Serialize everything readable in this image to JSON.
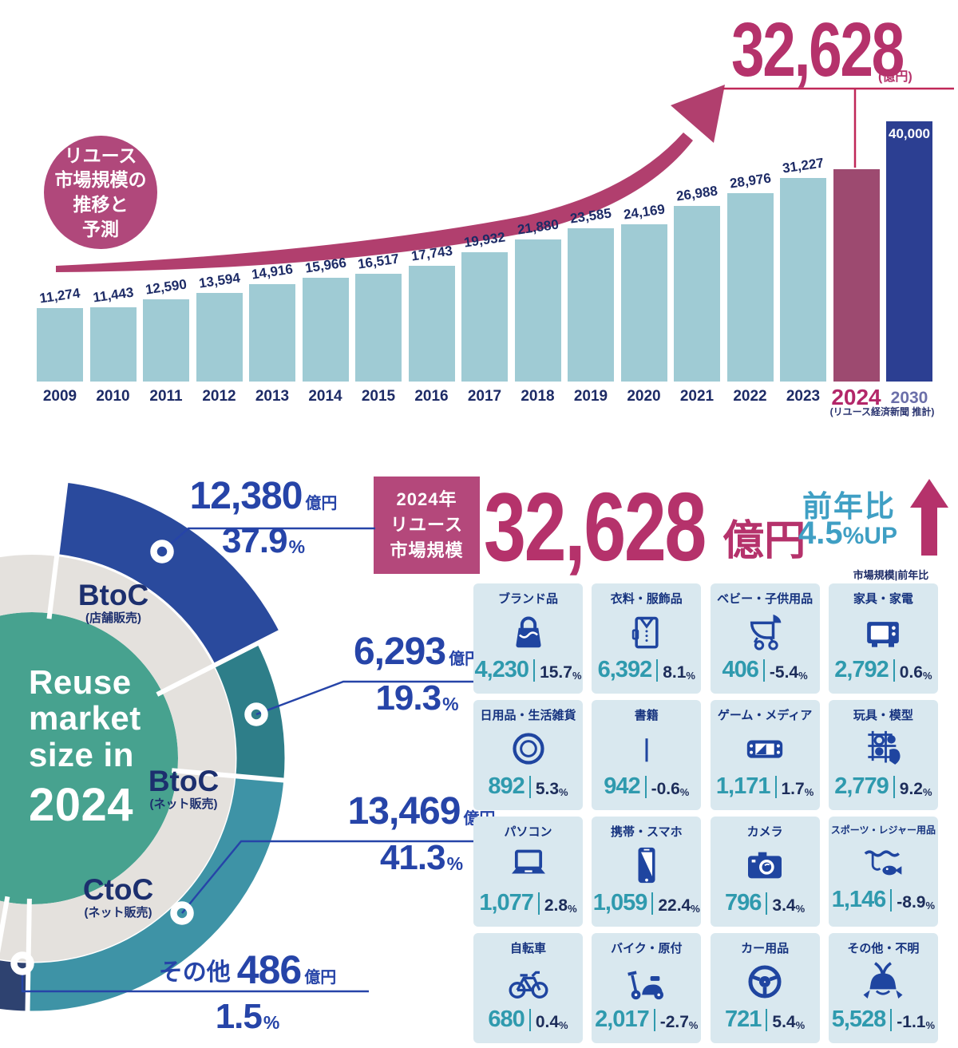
{
  "colors": {
    "accent_magenta": "#b5326b",
    "badge_pink": "#b0487b",
    "crimson_line": "#c02858",
    "navy_text": "#1d2b66",
    "callout_blue": "#2644a8",
    "ring_label_navy": "#1c2f6e",
    "teal_value": "#2f9aae",
    "card_bg": "#d9e8ef",
    "icon_blue": "#1f45a0",
    "yoy_teal": "#3f9fc4",
    "donut_center_teal": "#47a28f",
    "donut_gray_ring": "#e4e1dd"
  },
  "chart_data": [
    {
      "type": "bar",
      "title_badge_lines": [
        "リユース",
        "市場規模の",
        "推移と",
        "予測"
      ],
      "categories": [
        "2009",
        "2010",
        "2011",
        "2012",
        "2013",
        "2014",
        "2015",
        "2016",
        "2017",
        "2018",
        "2019",
        "2020",
        "2021",
        "2022",
        "2023",
        "2024",
        "2030"
      ],
      "values": [
        11274,
        11443,
        12590,
        13594,
        14916,
        15966,
        16517,
        17743,
        19932,
        21880,
        23585,
        24169,
        26988,
        28976,
        31227,
        32628,
        40000
      ],
      "value_labels": [
        "11,274",
        "11,443",
        "12,590",
        "13,594",
        "14,916",
        "15,966",
        "16,517",
        "17,743",
        "19,932",
        "21,880",
        "23,585",
        "24,169",
        "26,988",
        "28,976",
        "31,227",
        "",
        "40,000"
      ],
      "highlight": {
        "value_label": "32,628",
        "unit": "(億円)"
      },
      "source_note": "(リユース経済新聞 推計)",
      "ylim": [
        0,
        40000
      ],
      "grid": false,
      "colors": {
        "bar": "#9fcbd4",
        "bar_2024": "#9d4a70",
        "bar_2030": "#2c3f92",
        "label": "#1d2b66",
        "year_2024": "#b32769",
        "year_2030": "#6b6fa9",
        "arrow": "#b13f6e",
        "line": "#c02858",
        "label_2030": "#ffffff"
      }
    },
    {
      "type": "pie",
      "title_lines": [
        "Reuse",
        "market",
        "size in"
      ],
      "title_year": "2024",
      "segments": [
        {
          "label": "BtoC",
          "sublabel": "(店舗販売)",
          "value": 12380,
          "value_label": "12,380",
          "unit": "億円",
          "percent": 37.9,
          "percent_label": "37.9",
          "percent_unit": "%",
          "color": "#2a4a9d"
        },
        {
          "label": "BtoC",
          "sublabel": "(ネット販売)",
          "value": 6293,
          "value_label": "6,293",
          "unit": "億円",
          "percent": 19.3,
          "percent_label": "19.3",
          "percent_unit": "%",
          "color": "#2e7e89"
        },
        {
          "label": "CtoC",
          "sublabel": "(ネット販売)",
          "value": 13469,
          "value_label": "13,469",
          "unit": "億円",
          "percent": 41.3,
          "percent_label": "41.3",
          "percent_unit": "%",
          "color": "#3e93a6"
        },
        {
          "label": "その他",
          "sublabel": "",
          "value": 486,
          "value_label": "486",
          "unit": "億円",
          "percent": 1.5,
          "percent_label": "1.5",
          "percent_unit": "%",
          "color": "#2e4270"
        }
      ]
    },
    {
      "type": "table",
      "legend": "市場規模|前年比",
      "percent_unit": "%",
      "rows": [
        {
          "label": "ブランド品",
          "icon": "handbag-icon",
          "value": 4230,
          "value_label": "4,230",
          "percent": 15.7,
          "percent_label": "15.7"
        },
        {
          "label": "衣料・服飾品",
          "icon": "shirt-icon",
          "value": 6392,
          "value_label": "6,392",
          "percent": 8.1,
          "percent_label": "8.1"
        },
        {
          "label": "ベビー・子供用品",
          "icon": "stroller-icon",
          "value": 406,
          "value_label": "406",
          "percent": -5.4,
          "percent_label": "-5.4"
        },
        {
          "label": "家具・家電",
          "icon": "microwave-icon",
          "value": 2792,
          "value_label": "2,792",
          "percent": 0.6,
          "percent_label": "0.6"
        },
        {
          "label": "日用品・生活雑貨",
          "icon": "plate-icon",
          "value": 892,
          "value_label": "892",
          "percent": 5.3,
          "percent_label": "5.3"
        },
        {
          "label": "書籍",
          "icon": "book-icon",
          "value": 942,
          "value_label": "942",
          "percent": -0.6,
          "percent_label": "-0.6"
        },
        {
          "label": "ゲーム・メディア",
          "icon": "game-console-icon",
          "value": 1171,
          "value_label": "1,171",
          "percent": 1.7,
          "percent_label": "1.7"
        },
        {
          "label": "玩具・模型",
          "icon": "toy-gacha-icon",
          "value": 2779,
          "value_label": "2,779",
          "percent": 9.2,
          "percent_label": "9.2"
        },
        {
          "label": "パソコン",
          "icon": "laptop-icon",
          "value": 1077,
          "value_label": "1,077",
          "percent": 2.8,
          "percent_label": "2.8"
        },
        {
          "label": "携帯・スマホ",
          "icon": "smartphone-icon",
          "value": 1059,
          "value_label": "1,059",
          "percent": 22.4,
          "percent_label": "22.4"
        },
        {
          "label": "カメラ",
          "icon": "camera-icon",
          "value": 796,
          "value_label": "796",
          "percent": 3.4,
          "percent_label": "3.4"
        },
        {
          "label": "スポーツ・レジャー用品",
          "icon": "fishing-icon",
          "value": 1146,
          "value_label": "1,146",
          "percent": -8.9,
          "percent_label": "-8.9"
        },
        {
          "label": "自転車",
          "icon": "bicycle-icon",
          "value": 680,
          "value_label": "680",
          "percent": 0.4,
          "percent_label": "0.4"
        },
        {
          "label": "バイク・原付",
          "icon": "scooter-icon",
          "value": 2017,
          "value_label": "2,017",
          "percent": -2.7,
          "percent_label": "-2.7"
        },
        {
          "label": "カー用品",
          "icon": "steering-wheel-icon",
          "value": 721,
          "value_label": "721",
          "percent": 5.4,
          "percent_label": "5.4"
        },
        {
          "label": "その他・不明",
          "icon": "samurai-helmet-icon",
          "value": 5528,
          "value_label": "5,528",
          "percent": -1.1,
          "percent_label": "-1.1"
        }
      ]
    }
  ],
  "summary": {
    "label_box_lines": [
      "2024年",
      "リユース",
      "市場規模"
    ],
    "value_label": "32,628",
    "unit": "億円",
    "yoy_label": "前年比",
    "yoy_value": "4.5",
    "yoy_suffix": "%UP"
  }
}
